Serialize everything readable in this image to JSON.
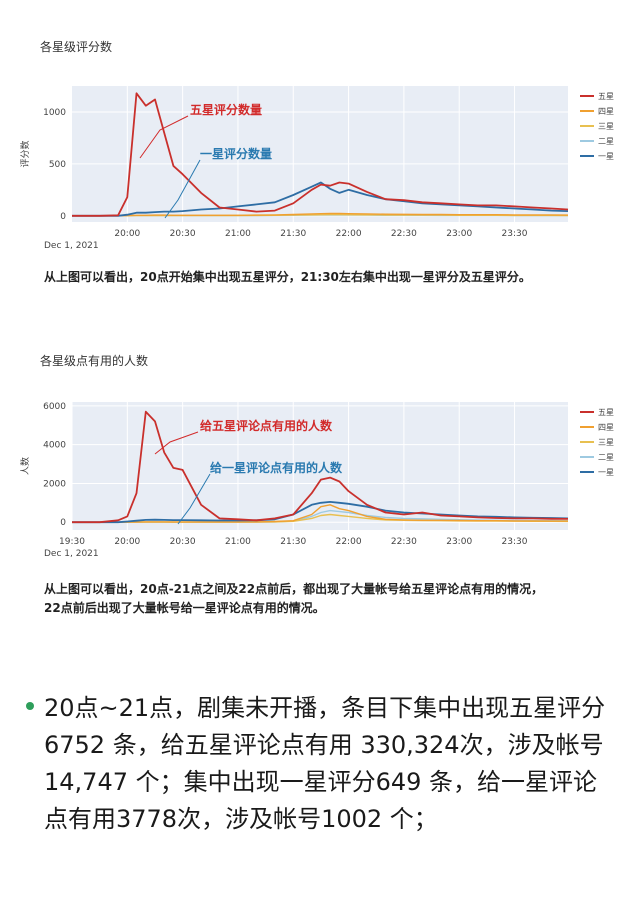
{
  "chart_data": [
    {
      "type": "line",
      "title": "各星级评分数",
      "ylabel": "评分数",
      "xlabel": "",
      "x_date_label": "Dec 1, 2021",
      "x_ticks": [
        "20:00",
        "20:30",
        "21:00",
        "21:30",
        "22:00",
        "22:30",
        "23:00",
        "23:30"
      ],
      "y_ticks": [
        0,
        500,
        1000
      ],
      "ylim": [
        -60,
        1250
      ],
      "xlim": [
        "19:30",
        "23:59"
      ],
      "legend": "right",
      "grid": true,
      "annotations": [
        {
          "text": "五星评分数量",
          "color": "#d22b2b"
        },
        {
          "text": "一星评分数量",
          "color": "#2a7ab0"
        }
      ],
      "x": [
        "19:30",
        "19:45",
        "19:55",
        "20:00",
        "20:05",
        "20:10",
        "20:15",
        "20:20",
        "20:25",
        "20:30",
        "20:40",
        "20:50",
        "21:00",
        "21:10",
        "21:20",
        "21:30",
        "21:40",
        "21:45",
        "21:50",
        "21:55",
        "22:00",
        "22:10",
        "22:20",
        "22:30",
        "22:40",
        "22:50",
        "23:00",
        "23:10",
        "23:20",
        "23:30",
        "23:40",
        "23:50",
        "23:59"
      ],
      "series": [
        {
          "name": "五星",
          "color": "#c9302c",
          "values": [
            0,
            0,
            5,
            180,
            1180,
            1060,
            1120,
            800,
            480,
            400,
            220,
            80,
            60,
            40,
            50,
            120,
            250,
            300,
            290,
            320,
            310,
            230,
            160,
            150,
            130,
            120,
            110,
            100,
            100,
            90,
            80,
            70,
            60
          ]
        },
        {
          "name": "四星",
          "color": "#f0a030",
          "values": [
            0,
            0,
            0,
            2,
            5,
            5,
            6,
            6,
            5,
            5,
            5,
            5,
            5,
            6,
            8,
            12,
            18,
            20,
            22,
            22,
            20,
            18,
            15,
            14,
            12,
            12,
            10,
            10,
            10,
            8,
            8,
            8,
            6
          ]
        },
        {
          "name": "三星",
          "color": "#e8c050",
          "values": [
            0,
            0,
            0,
            1,
            2,
            2,
            3,
            3,
            3,
            3,
            3,
            3,
            3,
            4,
            5,
            6,
            8,
            9,
            10,
            10,
            9,
            8,
            7,
            6,
            6,
            6,
            5,
            5,
            5,
            4,
            4,
            4,
            3
          ]
        },
        {
          "name": "二星",
          "color": "#9ecae1",
          "values": [
            0,
            0,
            0,
            1,
            2,
            2,
            2,
            2,
            2,
            2,
            2,
            2,
            2,
            3,
            4,
            5,
            6,
            7,
            7,
            7,
            6,
            6,
            5,
            5,
            5,
            4,
            4,
            4,
            4,
            3,
            3,
            3,
            3
          ]
        },
        {
          "name": "一星",
          "color": "#2e6da4",
          "values": [
            0,
            0,
            0,
            10,
            30,
            30,
            35,
            40,
            40,
            45,
            60,
            70,
            90,
            110,
            130,
            200,
            280,
            320,
            260,
            220,
            250,
            200,
            160,
            140,
            120,
            110,
            100,
            90,
            80,
            70,
            60,
            50,
            45
          ]
        }
      ]
    },
    {
      "type": "line",
      "title": "各星级点有用的人数",
      "ylabel": "人数",
      "xlabel": "",
      "x_date_label": "Dec 1, 2021",
      "x_ticks": [
        "19:30",
        "20:00",
        "20:30",
        "21:00",
        "21:30",
        "22:00",
        "22:30",
        "23:00",
        "23:30"
      ],
      "y_ticks": [
        0,
        2000,
        4000,
        6000
      ],
      "ylim": [
        -400,
        6200
      ],
      "xlim": [
        "19:30",
        "23:59"
      ],
      "legend": "right",
      "grid": true,
      "annotations": [
        {
          "text": "给五星评论点有用的人数",
          "color": "#d22b2b"
        },
        {
          "text": "给一星评论点有用的人数",
          "color": "#2a7ab0"
        }
      ],
      "x": [
        "19:30",
        "19:45",
        "19:55",
        "20:00",
        "20:05",
        "20:10",
        "20:15",
        "20:20",
        "20:25",
        "20:30",
        "20:40",
        "20:50",
        "21:00",
        "21:10",
        "21:20",
        "21:30",
        "21:40",
        "21:45",
        "21:50",
        "21:55",
        "22:00",
        "22:10",
        "22:20",
        "22:30",
        "22:40",
        "22:50",
        "23:00",
        "23:10",
        "23:20",
        "23:30",
        "23:40",
        "23:50",
        "23:59"
      ],
      "series": [
        {
          "name": "五星",
          "color": "#c9302c",
          "values": [
            0,
            0,
            100,
            300,
            1500,
            5700,
            5200,
            3600,
            2800,
            2700,
            900,
            200,
            150,
            100,
            200,
            400,
            1500,
            2200,
            2300,
            2100,
            1600,
            900,
            500,
            400,
            500,
            350,
            300,
            250,
            220,
            200,
            200,
            180,
            170
          ]
        },
        {
          "name": "四星",
          "color": "#f0a030",
          "values": [
            0,
            0,
            0,
            5,
            10,
            20,
            20,
            20,
            15,
            15,
            10,
            10,
            10,
            20,
            40,
            80,
            400,
            800,
            900,
            700,
            600,
            300,
            150,
            120,
            100,
            100,
            90,
            80,
            80,
            70,
            70,
            60,
            60
          ]
        },
        {
          "name": "三星",
          "color": "#e8c050",
          "values": [
            0,
            0,
            0,
            2,
            5,
            10,
            10,
            10,
            8,
            8,
            6,
            6,
            6,
            10,
            20,
            50,
            200,
            350,
            400,
            350,
            300,
            200,
            120,
            100,
            90,
            80,
            70,
            60,
            60,
            55,
            50,
            50,
            45
          ]
        },
        {
          "name": "二星",
          "color": "#9ecae1",
          "values": [
            0,
            0,
            0,
            2,
            4,
            8,
            8,
            8,
            6,
            6,
            5,
            5,
            5,
            10,
            20,
            60,
            300,
            500,
            600,
            550,
            500,
            350,
            250,
            200,
            180,
            150,
            130,
            110,
            100,
            90,
            85,
            80,
            80
          ]
        },
        {
          "name": "一星",
          "color": "#2e6da4",
          "values": [
            0,
            0,
            0,
            40,
            80,
            120,
            130,
            120,
            110,
            110,
            100,
            90,
            90,
            100,
            150,
            400,
            900,
            1000,
            1050,
            1000,
            950,
            800,
            600,
            500,
            450,
            400,
            350,
            300,
            280,
            250,
            230,
            220,
            200
          ]
        }
      ]
    }
  ],
  "captions": {
    "chart1": "从上图可以看出，20点开始集中出现五星评分，21:30左右集中出现一星评分及五星评分。",
    "chart2_line1": "从上图可以看出，20点-21点之间及22点前后，都出现了大量帐号给五星评论点有用的情况，",
    "chart2_line2": "22点前后出现了大量帐号给一星评论点有用的情况。"
  },
  "bullet": {
    "text": "20点~21点，剧集未开播，条目下集中出现五星评分 6752 条，给五星评论点有用 330,324次，涉及帐号 14,747 个；集中出现一星评分649 条，给一星评论点有用3778次，涉及帐号1002 个；",
    "bullet_color": "#2e9e5b"
  }
}
